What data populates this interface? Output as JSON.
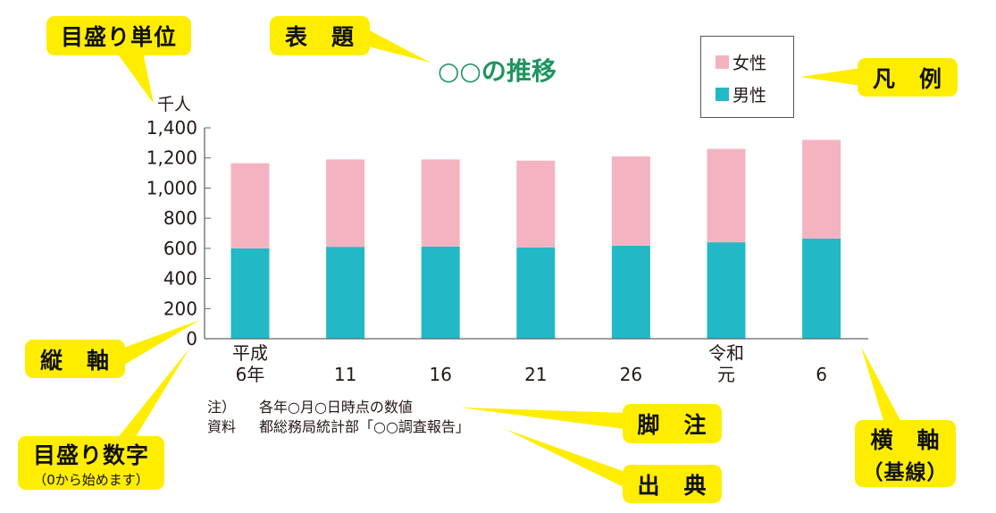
{
  "callouts": {
    "scale_unit": "目盛り単位",
    "title": "表　題",
    "legend": "凡　例",
    "vertical_axis": "縦　軸",
    "scale_numbers": "目盛り数字",
    "scale_numbers_sub": "（0から始めます）",
    "footnote": "脚　注",
    "source": "出　典",
    "horizontal_axis": "横　軸",
    "horizontal_axis_sub": "（基線）"
  },
  "colors": {
    "callout": "#ffed00",
    "female": "#f4b3c0",
    "male": "#22b8c6",
    "title": "#1e9460"
  },
  "notes": {
    "note_label": "注）",
    "note_text": "各年○月○日時点の数値",
    "source_label": "資料",
    "source_text": "都総務局統計部「○○調査報告」"
  },
  "chart_data": {
    "type": "bar",
    "stacked": true,
    "title": "○○の推移",
    "ylabel": "千人",
    "ylim": [
      0,
      1400
    ],
    "yticks": [
      "0",
      "200",
      "400",
      "600",
      "800",
      "1,000",
      "1,200",
      "1,400"
    ],
    "categories": [
      [
        "平成",
        "6年"
      ],
      [
        "",
        "11"
      ],
      [
        "",
        "16"
      ],
      [
        "",
        "21"
      ],
      [
        "",
        "26"
      ],
      [
        "令和",
        "元"
      ],
      [
        "",
        "6"
      ]
    ],
    "legend_position": "top-right",
    "series": [
      {
        "name": "男性",
        "color": "#22b8c6",
        "values": [
          600,
          610,
          612,
          605,
          618,
          640,
          665
        ]
      },
      {
        "name": "女性",
        "color": "#f4b3c0",
        "values": [
          565,
          580,
          578,
          577,
          592,
          620,
          655
        ]
      }
    ]
  }
}
